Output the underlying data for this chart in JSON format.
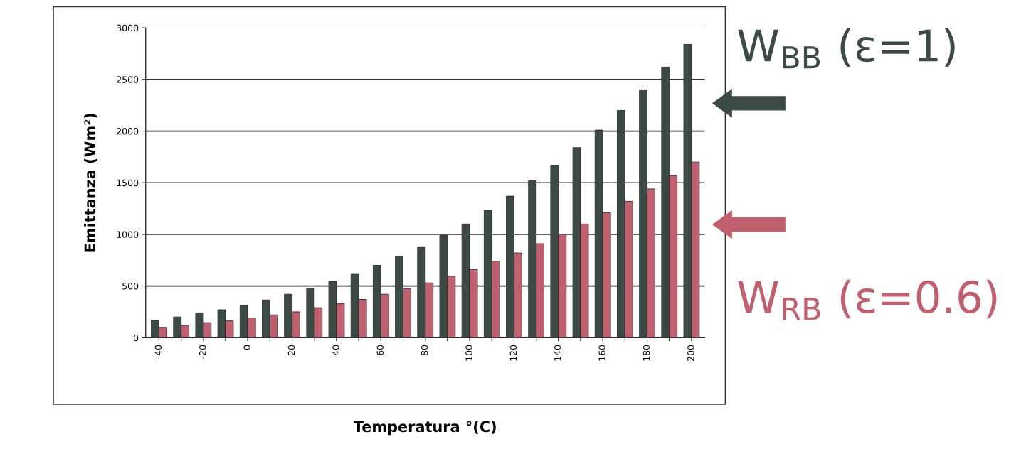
{
  "chart_data": {
    "type": "bar",
    "xlabel": "Temperatura °(C)",
    "ylabel": "Emittanza (Wm²)",
    "categories": [
      "-40",
      null,
      "-20",
      null,
      "0",
      null,
      "20",
      null,
      "40",
      null,
      "60",
      null,
      "80",
      null,
      "100",
      null,
      "120",
      null,
      "140",
      null,
      "160",
      null,
      "180",
      null,
      "200"
    ],
    "series": [
      {
        "name": "W$_{BB}$ (ε=1)",
        "color": "#3b4a44",
        "values": [
          170,
          200,
          240,
          270,
          315,
          365,
          420,
          480,
          545,
          620,
          700,
          790,
          880,
          990,
          1100,
          1230,
          1370,
          1520,
          1670,
          1840,
          2010,
          2200,
          2400,
          2620,
          2840
        ]
      },
      {
        "name": "W$_{RB}$ (ε=0.6)",
        "color": "#c0606e",
        "values": [
          100,
          120,
          145,
          165,
          190,
          220,
          250,
          290,
          330,
          370,
          420,
          475,
          530,
          595,
          660,
          740,
          820,
          910,
          1000,
          1100,
          1210,
          1320,
          1440,
          1570,
          1700
        ]
      }
    ],
    "ylim": [
      0,
      3000
    ],
    "yticks": [
      0,
      500,
      1000,
      1500,
      2000,
      2500,
      3000
    ],
    "grid": "y",
    "legend": "right"
  }
}
